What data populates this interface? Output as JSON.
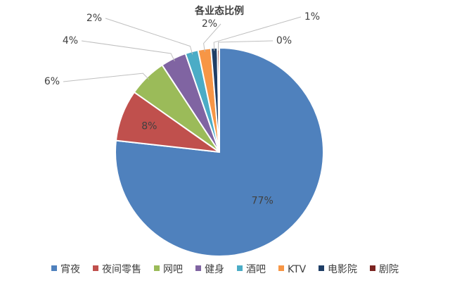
{
  "chart_data": {
    "type": "pie",
    "title": "各业态比例",
    "categories": [
      "宵夜",
      "夜间零售",
      "网吧",
      "健身",
      "酒吧",
      "KTV",
      "电影院",
      "剧院"
    ],
    "values": [
      77,
      8,
      6,
      4,
      2,
      2,
      1,
      0.3
    ],
    "labels": [
      "77%",
      "8%",
      "6%",
      "4%",
      "2%",
      "2%",
      "1%",
      "0%"
    ],
    "colors": [
      "#4F81BD",
      "#C0504D",
      "#9BBB59",
      "#8064A2",
      "#4BACC6",
      "#F79646",
      "#1F3E66",
      "#7B2421"
    ],
    "legend_position": "bottom",
    "grid": false
  }
}
